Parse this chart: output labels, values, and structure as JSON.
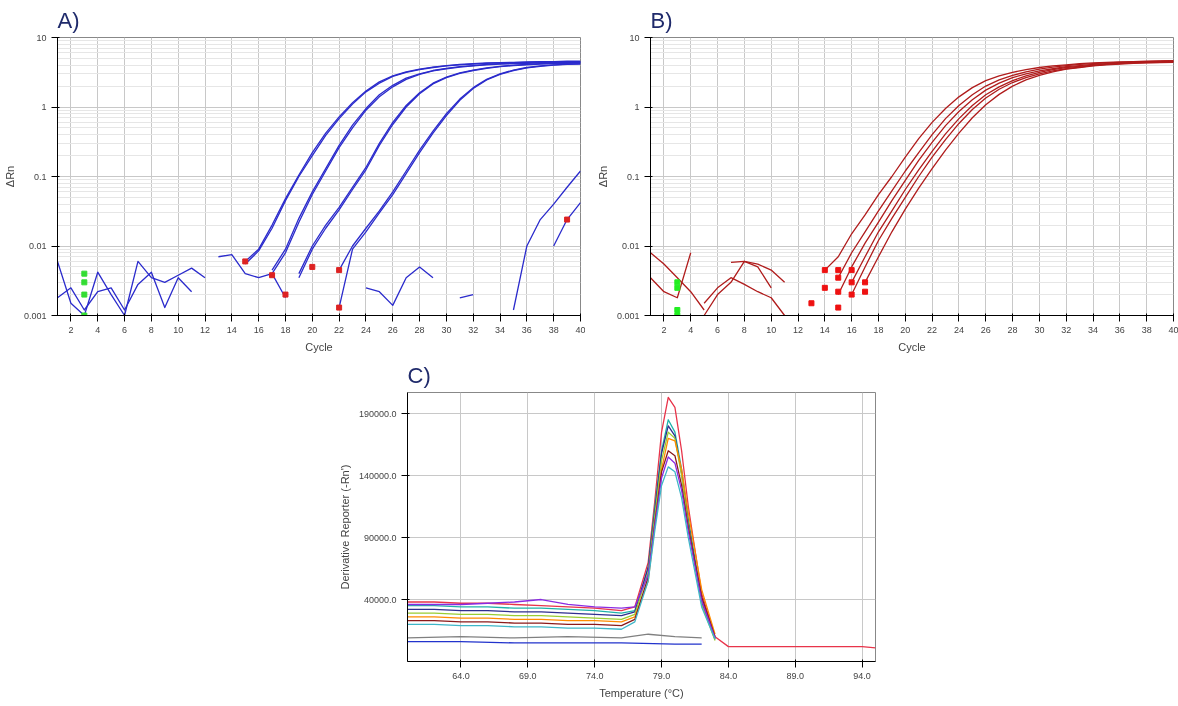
{
  "chart_data": [
    {
      "type": "line",
      "title": "A)",
      "xlabel": "Cycle",
      "ylabel": "ΔRn",
      "log": "y",
      "grid": true,
      "marker": "none",
      "line_style": "solid",
      "xlim": [
        1,
        40
      ],
      "ylim": [
        0.001,
        10
      ],
      "xticks": [
        2,
        4,
        6,
        8,
        10,
        12,
        14,
        16,
        18,
        20,
        22,
        24,
        26,
        28,
        30,
        32,
        34,
        36,
        38,
        40
      ],
      "yticks": [
        0.001,
        0.01,
        0.1,
        1,
        10
      ],
      "series": [
        {
          "color": "#2b2bcc",
          "x": [
            15,
            16,
            17,
            18,
            19,
            20,
            21,
            22,
            23,
            24,
            25,
            26,
            27,
            28,
            29,
            30,
            31,
            32,
            33,
            34,
            35,
            36,
            37,
            38,
            39,
            40
          ],
          "values": [
            0.006,
            0.009,
            0.02,
            0.048,
            0.105,
            0.22,
            0.42,
            0.72,
            1.15,
            1.7,
            2.3,
            2.8,
            3.2,
            3.5,
            3.75,
            3.95,
            4.1,
            4.2,
            4.3,
            4.35,
            4.4,
            4.45,
            4.5,
            4.5,
            4.55,
            4.55
          ]
        },
        {
          "color": "#2b2bcc",
          "x": [
            15,
            16,
            17,
            18,
            19,
            20,
            21,
            22,
            23,
            24,
            25,
            26,
            27,
            28,
            29,
            30,
            31,
            32,
            33,
            34,
            35,
            36,
            37,
            38,
            39,
            40
          ],
          "values": [
            0.0055,
            0.0085,
            0.018,
            0.045,
            0.1,
            0.2,
            0.39,
            0.68,
            1.1,
            1.65,
            2.2,
            2.75,
            3.15,
            3.45,
            3.7,
            3.9,
            4.05,
            4.15,
            4.25,
            4.3,
            4.35,
            4.4,
            4.45,
            4.5,
            4.5,
            4.5
          ]
        },
        {
          "color": "#2b2bcc",
          "x": [
            17,
            18,
            19,
            20,
            21,
            22,
            23,
            24,
            25,
            26,
            27,
            28,
            29,
            30,
            31,
            32,
            33,
            34,
            35,
            36,
            37,
            38,
            39,
            40
          ],
          "values": [
            0.0045,
            0.009,
            0.025,
            0.06,
            0.13,
            0.28,
            0.55,
            0.95,
            1.5,
            2.05,
            2.6,
            3.0,
            3.35,
            3.6,
            3.8,
            3.95,
            4.1,
            4.2,
            4.25,
            4.3,
            4.35,
            4.4,
            4.4,
            4.45
          ]
        },
        {
          "color": "#2b2bcc",
          "x": [
            17,
            18,
            19,
            20,
            21,
            22,
            23,
            24,
            25,
            26,
            27,
            28,
            29,
            30,
            31,
            32,
            33,
            34,
            35,
            36,
            37,
            38,
            39,
            40
          ],
          "values": [
            0.004,
            0.008,
            0.022,
            0.055,
            0.12,
            0.26,
            0.5,
            0.9,
            1.4,
            1.95,
            2.5,
            2.95,
            3.3,
            3.55,
            3.75,
            3.9,
            4.05,
            4.15,
            4.2,
            4.25,
            4.3,
            4.35,
            4.4,
            4.4
          ]
        },
        {
          "color": "#2b2bcc",
          "x": [
            19,
            20,
            21,
            22,
            23,
            24,
            25,
            26,
            27,
            28,
            29,
            30,
            31,
            32,
            33,
            34,
            35,
            36,
            37,
            38,
            39,
            40
          ],
          "values": [
            0.004,
            0.01,
            0.02,
            0.036,
            0.07,
            0.135,
            0.3,
            0.6,
            1.05,
            1.6,
            2.2,
            2.7,
            3.1,
            3.4,
            3.65,
            3.85,
            4.0,
            4.1,
            4.2,
            4.25,
            4.3,
            4.35
          ]
        },
        {
          "color": "#2b2bcc",
          "x": [
            19,
            20,
            21,
            22,
            23,
            24,
            25,
            26,
            27,
            28,
            29,
            30,
            31,
            32,
            33,
            34,
            35,
            36,
            37,
            38,
            39,
            40
          ],
          "values": [
            0.0035,
            0.009,
            0.018,
            0.033,
            0.065,
            0.125,
            0.28,
            0.56,
            1.0,
            1.55,
            2.15,
            2.65,
            3.05,
            3.35,
            3.6,
            3.8,
            3.95,
            4.05,
            4.15,
            4.2,
            4.25,
            4.3
          ]
        },
        {
          "color": "#2b2bcc",
          "x": [
            22,
            23,
            24,
            25,
            26,
            27,
            28,
            29,
            30,
            31,
            32,
            33,
            34,
            35,
            36,
            37,
            38,
            39,
            40
          ],
          "values": [
            0.0045,
            0.01,
            0.018,
            0.032,
            0.06,
            0.12,
            0.24,
            0.45,
            0.8,
            1.3,
            1.9,
            2.5,
            3.0,
            3.4,
            3.7,
            3.9,
            4.05,
            4.15,
            4.2
          ]
        },
        {
          "color": "#2b2bcc",
          "x": [
            22,
            23,
            24,
            25,
            26,
            27,
            28,
            29,
            30,
            31,
            32,
            33,
            34,
            35,
            36,
            37,
            38,
            39,
            40
          ],
          "values": [
            0.0013,
            0.009,
            0.016,
            0.03,
            0.055,
            0.11,
            0.22,
            0.42,
            0.75,
            1.25,
            1.85,
            2.45,
            2.95,
            3.35,
            3.65,
            3.85,
            4.0,
            4.1,
            4.15
          ]
        },
        {
          "color": "#2b2bcc",
          "x": [
            35,
            36,
            37,
            38,
            39,
            40
          ],
          "values": [
            0.0012,
            0.01,
            0.024,
            0.04,
            0.07,
            0.12
          ]
        },
        {
          "color": "#2b2bcc",
          "x": [
            38,
            39,
            40
          ],
          "values": [
            0.01,
            0.024,
            0.042
          ]
        },
        {
          "color": "#2b2bcc",
          "x": [
            1,
            2,
            3,
            4,
            5,
            6,
            7,
            8,
            9,
            10,
            11,
            12
          ],
          "values": [
            0.006,
            0.0015,
            0.001,
            0.0042,
            0.002,
            0.001,
            0.006,
            0.0035,
            0.003,
            0.0038,
            0.0048,
            0.0035
          ]
        },
        {
          "color": "#2b2bcc",
          "x": [
            1,
            2,
            3,
            4,
            5,
            6,
            7,
            8,
            9,
            10,
            11
          ],
          "values": [
            0.0018,
            0.0025,
            0.0012,
            0.0022,
            0.0025,
            0.0012,
            0.0028,
            0.0042,
            0.0013,
            0.0035,
            0.0022
          ]
        },
        {
          "color": "#2b2bcc",
          "x": [
            24,
            25,
            26,
            27,
            28,
            29,
            30,
            31,
            32
          ],
          "values": [
            0.0025,
            0.0022,
            0.0014,
            0.0035,
            0.005,
            0.0035,
            null,
            0.0018,
            0.002
          ]
        },
        {
          "color": "#2b2bcc",
          "x": [
            13,
            14,
            15,
            16,
            17,
            18
          ],
          "values": [
            0.007,
            0.0075,
            0.004,
            0.0035,
            0.004,
            0.0018
          ]
        },
        {
          "type": "scatter",
          "marker": "square",
          "color": "#dd2222",
          "x": [
            15,
            17,
            18,
            20,
            22,
            22,
            39
          ],
          "values": [
            0.006,
            0.0038,
            0.002,
            0.005,
            0.0045,
            0.0013,
            0.024
          ]
        },
        {
          "type": "scatter",
          "marker": "square",
          "color": "#33dd33",
          "x": [
            3,
            3,
            3,
            3
          ],
          "values": [
            0.004,
            0.003,
            0.002,
            0.001
          ]
        }
      ]
    },
    {
      "type": "line",
      "title": "B)",
      "xlabel": "Cycle",
      "ylabel": "ΔRn",
      "log": "y",
      "grid": true,
      "marker": "none",
      "line_style": "solid",
      "xlim": [
        1,
        40
      ],
      "ylim": [
        0.001,
        10
      ],
      "xticks": [
        2,
        4,
        6,
        8,
        10,
        12,
        14,
        16,
        18,
        20,
        22,
        24,
        26,
        28,
        30,
        32,
        34,
        36,
        38,
        40
      ],
      "yticks": [
        0.001,
        0.01,
        0.1,
        1,
        10
      ],
      "series": [
        {
          "color": "#b01c1c",
          "x": [
            14,
            15,
            16,
            17,
            18,
            19,
            20,
            21,
            22,
            23,
            24,
            25,
            26,
            27,
            28,
            29,
            30,
            31,
            32,
            33,
            34,
            35,
            36,
            37,
            38,
            39,
            40
          ],
          "values": [
            0.0045,
            0.007,
            0.015,
            0.028,
            0.055,
            0.1,
            0.19,
            0.35,
            0.6,
            0.95,
            1.4,
            1.9,
            2.4,
            2.8,
            3.15,
            3.45,
            3.7,
            3.9,
            4.05,
            4.2,
            4.3,
            4.4,
            4.45,
            4.5,
            4.55,
            4.6,
            4.65
          ]
        },
        {
          "color": "#b01c1c",
          "x": [
            15,
            16,
            17,
            18,
            19,
            20,
            21,
            22,
            23,
            24,
            25,
            26,
            27,
            28,
            29,
            30,
            31,
            32,
            33,
            34,
            35,
            36,
            37,
            38,
            39,
            40
          ],
          "values": [
            0.0035,
            0.008,
            0.016,
            0.032,
            0.062,
            0.12,
            0.22,
            0.4,
            0.68,
            1.05,
            1.5,
            2.0,
            2.45,
            2.85,
            3.2,
            3.5,
            3.75,
            3.95,
            4.1,
            4.2,
            4.3,
            4.4,
            4.45,
            4.5,
            4.55,
            4.6
          ]
        },
        {
          "color": "#b01c1c",
          "x": [
            15,
            16,
            17,
            18,
            19,
            20,
            21,
            22,
            23,
            24,
            25,
            26,
            27,
            28,
            29,
            30,
            31,
            32,
            33,
            34,
            35,
            36,
            37,
            38,
            39,
            40
          ],
          "values": [
            0.002,
            0.005,
            0.011,
            0.022,
            0.045,
            0.088,
            0.17,
            0.31,
            0.54,
            0.86,
            1.27,
            1.75,
            2.2,
            2.65,
            3.0,
            3.3,
            3.55,
            3.8,
            3.95,
            4.1,
            4.2,
            4.3,
            4.4,
            4.45,
            4.5,
            4.55
          ]
        },
        {
          "color": "#b01c1c",
          "x": [
            16,
            17,
            18,
            19,
            20,
            21,
            22,
            23,
            24,
            25,
            26,
            27,
            28,
            29,
            30,
            31,
            32,
            33,
            34,
            35,
            36,
            37,
            38,
            39,
            40
          ],
          "values": [
            0.003,
            0.007,
            0.016,
            0.032,
            0.065,
            0.125,
            0.23,
            0.41,
            0.68,
            1.05,
            1.5,
            1.95,
            2.4,
            2.8,
            3.15,
            3.45,
            3.7,
            3.85,
            4.0,
            4.15,
            4.25,
            4.35,
            4.4,
            4.45,
            4.5
          ]
        },
        {
          "color": "#b01c1c",
          "x": [
            16,
            17,
            18,
            19,
            20,
            21,
            22,
            23,
            24,
            25,
            26,
            27,
            28,
            29,
            30,
            31,
            32,
            33,
            34,
            35,
            36,
            37,
            38,
            39,
            40
          ],
          "values": [
            0.002,
            0.005,
            0.012,
            0.025,
            0.05,
            0.1,
            0.19,
            0.34,
            0.58,
            0.92,
            1.35,
            1.8,
            2.25,
            2.65,
            3.0,
            3.3,
            3.55,
            3.75,
            3.95,
            4.1,
            4.2,
            4.3,
            4.35,
            4.4,
            4.45
          ]
        },
        {
          "color": "#b01c1c",
          "x": [
            17,
            18,
            19,
            20,
            21,
            22,
            23,
            24,
            25,
            26,
            27,
            28,
            29,
            30,
            31,
            32,
            33,
            34,
            35,
            36,
            37,
            38,
            39,
            40
          ],
          "values": [
            0.003,
            0.007,
            0.016,
            0.034,
            0.068,
            0.13,
            0.24,
            0.42,
            0.7,
            1.08,
            1.52,
            2.0,
            2.45,
            2.85,
            3.2,
            3.5,
            3.7,
            3.9,
            4.05,
            4.15,
            4.25,
            4.3,
            4.35,
            4.4
          ]
        },
        {
          "color": "#b01c1c",
          "x": [
            1,
            2,
            3,
            4,
            5
          ],
          "values": [
            0.008,
            0.0055,
            0.0035,
            0.0022,
            0.0012
          ]
        },
        {
          "color": "#b01c1c",
          "x": [
            1,
            2,
            3,
            4
          ],
          "values": [
            0.0035,
            0.0022,
            0.0018,
            0.008
          ]
        },
        {
          "color": "#b01c1c",
          "x": [
            5,
            6,
            7,
            8,
            9,
            10,
            11
          ],
          "values": [
            0.0015,
            0.0025,
            0.0035,
            0.0028,
            0.0022,
            0.0018,
            0.001
          ]
        },
        {
          "color": "#b01c1c",
          "x": [
            5,
            6,
            7,
            8,
            9,
            10
          ],
          "values": [
            0.001,
            0.002,
            0.003,
            0.006,
            0.005,
            0.0025
          ]
        },
        {
          "color": "#b01c1c",
          "x": [
            7,
            8,
            9,
            10,
            11
          ],
          "values": [
            0.0058,
            0.006,
            0.0055,
            0.0045,
            0.003
          ]
        },
        {
          "type": "scatter",
          "marker": "square",
          "color": "#ee1111",
          "x": [
            13,
            14,
            14,
            15,
            15,
            15,
            15,
            16,
            16,
            16,
            17,
            17
          ],
          "values": [
            0.0015,
            0.0045,
            0.0025,
            0.0045,
            0.0035,
            0.0022,
            0.0013,
            0.0045,
            0.003,
            0.002,
            0.003,
            0.0022
          ]
        },
        {
          "type": "scatter",
          "marker": "square",
          "color": "#22ee22",
          "x": [
            3,
            3,
            3,
            3
          ],
          "values": [
            0.003,
            0.0025,
            0.0012,
            0.001
          ]
        }
      ]
    },
    {
      "type": "line",
      "title": "C)",
      "xlabel": "Temperature (°C)",
      "ylabel": "Derivative Reporter (-Rn')",
      "grid": true,
      "marker": "none",
      "line_style": "solid",
      "xlim": [
        60,
        95
      ],
      "ylim": [
        -10000,
        207000
      ],
      "xticks": [
        {
          "value": 64,
          "label": "64.0"
        },
        {
          "value": 69,
          "label": "69.0"
        },
        {
          "value": 74,
          "label": "74.0"
        },
        {
          "value": 79,
          "label": "79.0"
        },
        {
          "value": 84,
          "label": "84.0"
        },
        {
          "value": 89,
          "label": "89.0"
        },
        {
          "value": 94,
          "label": "94.0"
        }
      ],
      "yticks": [
        {
          "value": 40000,
          "label": "40000.0"
        },
        {
          "value": 90000,
          "label": "90000.0"
        },
        {
          "value": 140000,
          "label": "140000.0"
        },
        {
          "value": 190000,
          "label": "190000.0"
        }
      ],
      "series": [
        {
          "color": "#e8344a",
          "x": [
            60,
            62,
            64,
            66,
            68,
            70,
            72,
            74,
            76,
            77,
            78,
            78.5,
            79,
            79.5,
            80,
            80.5,
            81,
            82,
            83,
            84,
            86,
            88,
            90,
            92,
            94,
            95
          ],
          "values": [
            38000,
            38000,
            37000,
            37000,
            36000,
            35000,
            34000,
            33000,
            31000,
            34000,
            70000,
            120000,
            175000,
            203000,
            195000,
            160000,
            115000,
            45000,
            10000,
            2000,
            2000,
            2000,
            2000,
            2000,
            2000,
            1000
          ]
        },
        {
          "color": "#20b2aa",
          "x": [
            60,
            62,
            64,
            66,
            68,
            70,
            72,
            74,
            76,
            77,
            78,
            78.5,
            79,
            79.5,
            80,
            80.5,
            81,
            82,
            83
          ],
          "values": [
            35000,
            35000,
            34000,
            34000,
            33000,
            33000,
            32000,
            31000,
            29000,
            31000,
            65000,
            115000,
            160000,
            185000,
            175000,
            145000,
            105000,
            40000,
            9000
          ]
        },
        {
          "color": "#2f2f8f",
          "x": [
            60,
            62,
            64,
            66,
            68,
            70,
            72,
            74,
            76,
            77,
            78,
            78.5,
            79,
            79.5,
            80,
            80.5,
            81,
            82,
            83
          ],
          "values": [
            32000,
            32000,
            31000,
            31000,
            30000,
            30000,
            29000,
            28000,
            27000,
            30000,
            66000,
            112000,
            158000,
            180000,
            172000,
            142000,
            102000,
            38000,
            8000
          ]
        },
        {
          "color": "#9acd32",
          "x": [
            60,
            62,
            64,
            66,
            68,
            70,
            72,
            74,
            76,
            77,
            78,
            78.5,
            79,
            79.5,
            80,
            80.5,
            81,
            82,
            83
          ],
          "values": [
            29000,
            29000,
            28000,
            28000,
            27000,
            27000,
            26000,
            25000,
            24000,
            28000,
            62000,
            108000,
            152000,
            175000,
            170000,
            140000,
            100000,
            36000,
            7000
          ]
        },
        {
          "color": "#ff8c00",
          "x": [
            60,
            62,
            64,
            66,
            68,
            70,
            72,
            74,
            76,
            77,
            78,
            78.5,
            79,
            79.5,
            80,
            80.5,
            81,
            82,
            83
          ],
          "values": [
            26000,
            26000,
            25000,
            25000,
            24000,
            24000,
            23000,
            23000,
            22000,
            26000,
            55000,
            100000,
            145000,
            170000,
            168000,
            145000,
            110000,
            48000,
            12000
          ]
        },
        {
          "color": "#8b1a1a",
          "x": [
            60,
            62,
            64,
            66,
            68,
            70,
            72,
            74,
            76,
            77,
            78,
            78.5,
            79,
            79.5,
            80,
            80.5,
            81,
            82,
            83
          ],
          "values": [
            23000,
            23000,
            22000,
            22000,
            21000,
            21000,
            20000,
            20000,
            19000,
            24000,
            58000,
            102000,
            143000,
            160000,
            156000,
            132000,
            98000,
            42000,
            10000
          ]
        },
        {
          "color": "#8a2be2",
          "x": [
            60,
            62,
            64,
            66,
            68,
            70,
            72,
            74,
            76,
            77,
            78,
            78.5,
            79,
            79.5,
            80,
            80.5,
            81,
            82,
            83
          ],
          "values": [
            36000,
            36000,
            36000,
            37000,
            38000,
            40000,
            36000,
            34000,
            33000,
            34000,
            60000,
            100000,
            138000,
            155000,
            150000,
            128000,
            95000,
            39000,
            9000
          ]
        },
        {
          "color": "#3fb6c8",
          "x": [
            60,
            62,
            64,
            66,
            68,
            70,
            72,
            74,
            76,
            77,
            78,
            78.5,
            79,
            79.5,
            80,
            80.5,
            81,
            82,
            83
          ],
          "values": [
            20000,
            20000,
            19000,
            19000,
            18000,
            18000,
            17000,
            17000,
            16000,
            22000,
            55000,
            96000,
            132000,
            147000,
            143000,
            122000,
            90000,
            34000,
            8000
          ]
        },
        {
          "color": "#2233cc",
          "x": [
            60,
            64,
            68,
            72,
            76,
            80,
            82
          ],
          "values": [
            6000,
            6000,
            5000,
            5000,
            5000,
            4000,
            4000
          ]
        },
        {
          "color": "#808080",
          "x": [
            60,
            64,
            68,
            72,
            76,
            78,
            80,
            82
          ],
          "values": [
            9000,
            10000,
            9000,
            10000,
            9000,
            12000,
            10000,
            9000
          ]
        }
      ]
    }
  ]
}
